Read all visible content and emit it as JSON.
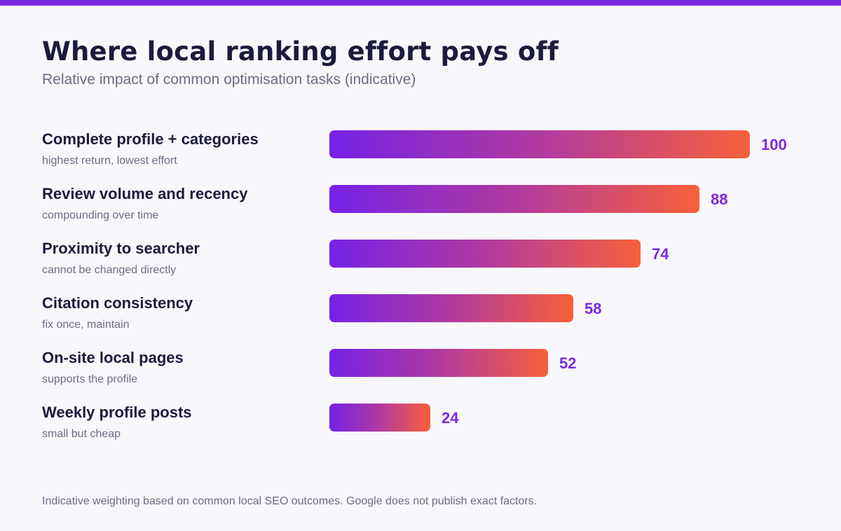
{
  "header": {
    "title": "Where local ranking effort pays off",
    "subtitle": "Relative impact of common optimisation tasks (indicative)"
  },
  "colors": {
    "accent": "#7a2be0",
    "bar_start": "#7522e6",
    "bar_end": "#f7603a",
    "text_dark": "#1c1a3d",
    "text_muted": "#6e6b82"
  },
  "chart_data": {
    "type": "bar",
    "orientation": "horizontal",
    "title": "Where local ranking effort pays off",
    "subtitle": "Relative impact of common optimisation tasks (indicative)",
    "categories": [
      "Complete profile + categories",
      "Review volume and recency",
      "Proximity to searcher",
      "Citation consistency",
      "On-site local pages",
      "Weekly profile posts"
    ],
    "notes": [
      "highest return, lowest effort",
      "compounding over time",
      "cannot be changed directly",
      "fix once, maintain",
      "supports the profile",
      "small but cheap"
    ],
    "values": [
      100,
      88,
      74,
      58,
      52,
      24
    ],
    "value_labels": [
      "100",
      "88",
      "74",
      "58",
      "52",
      "24"
    ],
    "xlim": [
      0,
      100
    ],
    "grid": false,
    "legend": "none"
  },
  "footnote": "Indicative weighting based on common local SEO outcomes. Google does not publish exact factors."
}
